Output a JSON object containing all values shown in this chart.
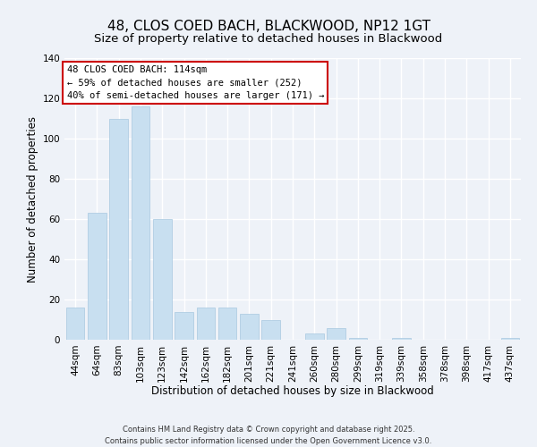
{
  "title": "48, CLOS COED BACH, BLACKWOOD, NP12 1GT",
  "subtitle": "Size of property relative to detached houses in Blackwood",
  "xlabel": "Distribution of detached houses by size in Blackwood",
  "ylabel": "Number of detached properties",
  "bar_color": "#c8dff0",
  "bar_edge_color": "#a8c8e0",
  "background_color": "#eef2f8",
  "grid_color": "#ffffff",
  "categories": [
    "44sqm",
    "64sqm",
    "83sqm",
    "103sqm",
    "123sqm",
    "142sqm",
    "162sqm",
    "182sqm",
    "201sqm",
    "221sqm",
    "241sqm",
    "260sqm",
    "280sqm",
    "299sqm",
    "319sqm",
    "339sqm",
    "358sqm",
    "378sqm",
    "398sqm",
    "417sqm",
    "437sqm"
  ],
  "values": [
    16,
    63,
    110,
    116,
    60,
    14,
    16,
    16,
    13,
    10,
    0,
    3,
    6,
    1,
    0,
    1,
    0,
    0,
    0,
    0,
    1
  ],
  "ylim": [
    0,
    140
  ],
  "yticks": [
    0,
    20,
    40,
    60,
    80,
    100,
    120,
    140
  ],
  "annotation_line1": "48 CLOS COED BACH: 114sqm",
  "annotation_line2": "← 59% of detached houses are smaller (252)",
  "annotation_line3": "40% of semi-detached houses are larger (171) →",
  "annotation_box_color": "#ffffff",
  "annotation_box_edge_color": "#cc0000",
  "footer_line1": "Contains HM Land Registry data © Crown copyright and database right 2025.",
  "footer_line2": "Contains public sector information licensed under the Open Government Licence v3.0.",
  "title_fontsize": 11,
  "subtitle_fontsize": 9.5,
  "axis_label_fontsize": 8.5,
  "tick_fontsize": 7.5,
  "annotation_fontsize": 7.5,
  "footer_fontsize": 6.0
}
